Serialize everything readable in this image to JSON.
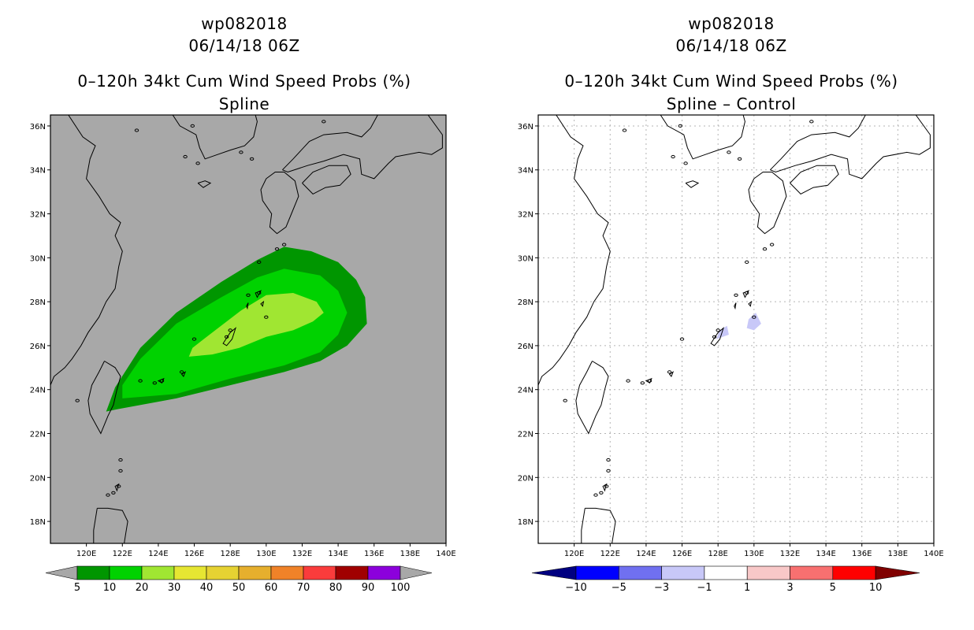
{
  "left": {
    "title_line1": "wp082018",
    "title_line2": "06/14/18 06Z",
    "title_line3": "0–120h 34kt Cum Wind Speed Probs (%)",
    "title_line4": "Spline",
    "background_color": "#a8a8a8"
  },
  "right": {
    "title_line1": "wp082018",
    "title_line2": "06/14/18 06Z",
    "title_line3": "0–120h 34kt Cum Wind Speed Probs (%)",
    "title_line4": "Spline – Control",
    "background_color": "#ffffff"
  },
  "axes": {
    "lon_ticks": [
      "120E",
      "122E",
      "124E",
      "126E",
      "128E",
      "130E",
      "132E",
      "134E",
      "136E",
      "138E",
      "140E"
    ],
    "lat_ticks": [
      "18N",
      "20N",
      "22N",
      "24N",
      "26N",
      "28N",
      "30N",
      "32N",
      "34N",
      "36N"
    ]
  },
  "left_colorbar": {
    "labels": [
      "5",
      "10",
      "20",
      "30",
      "40",
      "50",
      "60",
      "70",
      "80",
      "90",
      "100"
    ],
    "colors": [
      "#009600",
      "#00d200",
      "#a0e632",
      "#e6e632",
      "#e6d232",
      "#e6af2d",
      "#f08228",
      "#fa3c3c",
      "#a00000",
      "#8c00dc"
    ]
  },
  "right_colorbar": {
    "labels": [
      "−10",
      "−5",
      "−3",
      "−1",
      "1",
      "3",
      "5",
      "10"
    ],
    "colors": [
      "#0000ff",
      "#7070f0",
      "#c8c8f8",
      "#ffffff",
      "#f8c8c8",
      "#f87070",
      "#ff0000"
    ],
    "end_low": "#000080",
    "end_high": "#800000"
  },
  "chart_data": {
    "type": "map",
    "projection": "lon/lat",
    "lon_range": [
      118,
      140
    ],
    "lat_range": [
      17,
      36.5
    ],
    "left_prob_regions": [
      {
        "threshold": "5",
        "color": "#009600",
        "polygon": [
          [
            121.1,
            23.0
          ],
          [
            121.7,
            23.1
          ],
          [
            125.0,
            23.6
          ],
          [
            128.0,
            24.2
          ],
          [
            131.0,
            24.8
          ],
          [
            133.0,
            25.3
          ],
          [
            134.5,
            26.0
          ],
          [
            135.6,
            27.0
          ],
          [
            135.5,
            28.2
          ],
          [
            135.0,
            29.0
          ],
          [
            134.0,
            29.8
          ],
          [
            132.5,
            30.3
          ],
          [
            131.0,
            30.5
          ],
          [
            129.5,
            29.9
          ],
          [
            127.5,
            28.9
          ],
          [
            125.0,
            27.5
          ],
          [
            123.0,
            25.9
          ],
          [
            121.6,
            24.1
          ]
        ]
      },
      {
        "threshold": "10",
        "color": "#00d200",
        "polygon": [
          [
            122.0,
            23.6
          ],
          [
            125.0,
            23.8
          ],
          [
            128.0,
            24.5
          ],
          [
            131.0,
            25.1
          ],
          [
            133.0,
            25.7
          ],
          [
            134.0,
            26.5
          ],
          [
            134.5,
            27.5
          ],
          [
            134.0,
            28.5
          ],
          [
            133.0,
            29.2
          ],
          [
            131.0,
            29.5
          ],
          [
            129.5,
            29.1
          ],
          [
            127.5,
            28.2
          ],
          [
            125.0,
            27.0
          ],
          [
            123.0,
            25.4
          ],
          [
            122.0,
            24.2
          ]
        ]
      },
      {
        "threshold": "20",
        "color": "#a0e632",
        "polygon": [
          [
            125.7,
            25.5
          ],
          [
            127.0,
            25.6
          ],
          [
            128.5,
            25.9
          ],
          [
            130.0,
            26.4
          ],
          [
            131.5,
            26.7
          ],
          [
            132.6,
            27.1
          ],
          [
            133.2,
            27.5
          ],
          [
            132.8,
            28.0
          ],
          [
            131.5,
            28.4
          ],
          [
            130.0,
            28.3
          ],
          [
            128.6,
            27.6
          ],
          [
            127.0,
            26.6
          ],
          [
            125.9,
            25.9
          ]
        ]
      }
    ],
    "right_diff_regions": [
      {
        "threshold": "−1 to −3",
        "color": "#c8c8f8",
        "polygon": [
          [
            129.6,
            26.8
          ],
          [
            130.0,
            26.7
          ],
          [
            130.4,
            27.0
          ],
          [
            130.1,
            27.5
          ],
          [
            129.7,
            27.2
          ]
        ]
      },
      {
        "threshold": "−1 to −3",
        "color": "#c8c8f8",
        "polygon": [
          [
            127.9,
            26.3
          ],
          [
            128.6,
            26.5
          ],
          [
            128.5,
            26.9
          ],
          [
            128.1,
            26.7
          ]
        ]
      }
    ]
  }
}
